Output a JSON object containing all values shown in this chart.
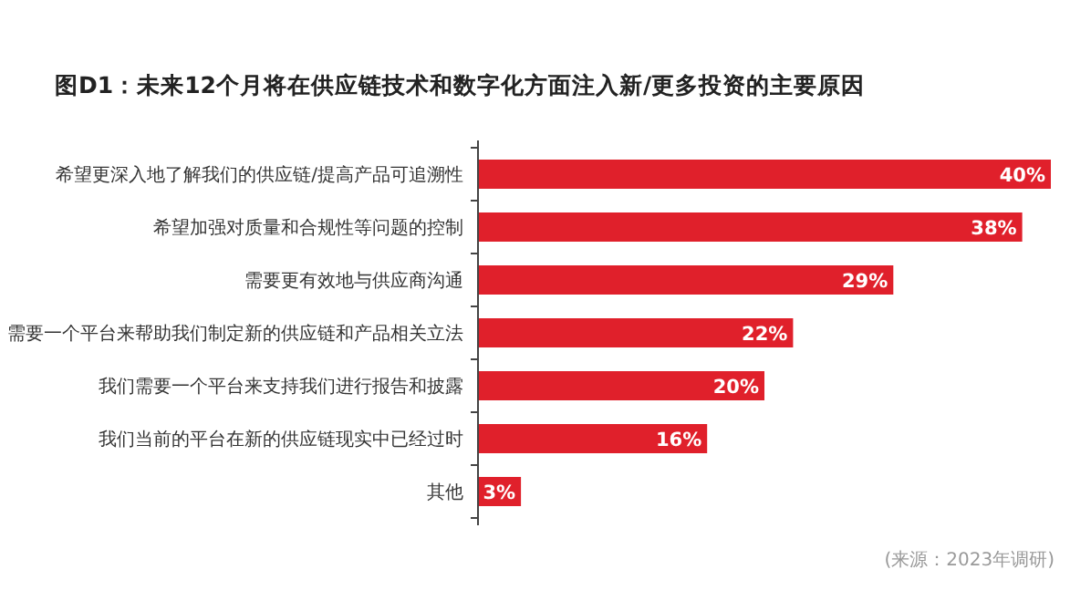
{
  "chart_data": {
    "type": "bar",
    "orientation": "horizontal",
    "title": "图D1：未来12个月将在供应链技术和数字化方面注入新/更多投资的主要原因",
    "categories": [
      "希望更深入地了解我们的供应链/提高产品可追溯性",
      "希望加强对质量和合规性等问题的控制",
      "需要更有效地与供应商沟通",
      "需要一个平台来帮助我们制定新的供应链和产品相关立法",
      "我们需要一个平台来支持我们进行报告和披露",
      "我们当前的平台在新的供应链现实中已经过时",
      "其他"
    ],
    "values": [
      40,
      38,
      29,
      22,
      20,
      16,
      3
    ],
    "value_labels": [
      "40%",
      "38%",
      "29%",
      "22%",
      "20%",
      "16%",
      "3%"
    ],
    "color": "#e0202b",
    "annotations": [
      "(来源：2023年调研)"
    ]
  }
}
